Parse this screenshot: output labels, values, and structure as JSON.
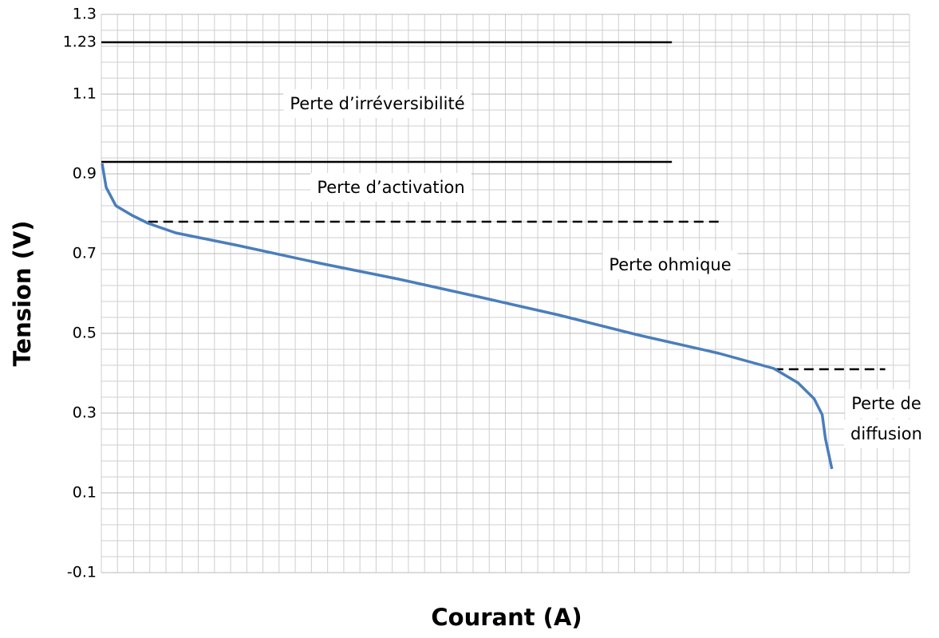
{
  "chart_data": {
    "type": "line",
    "xlabel": "Courant (A)",
    "ylabel": "Tension (V)",
    "xlim": [
      0,
      50
    ],
    "ylim": [
      -0.1,
      1.3
    ],
    "yticks": [
      -0.1,
      0.1,
      0.3,
      0.5,
      0.7,
      0.9,
      1.1,
      1.23,
      1.3
    ],
    "grid": true,
    "x_minor_step": 1,
    "y_minor_step": 0.04,
    "series": [
      {
        "color": "#4a7ebb",
        "x": [
          0.05,
          0.3,
          0.9,
          1.9,
          2.9,
          4.6,
          8.5,
          13.5,
          18.4,
          23.3,
          28.3,
          33.2,
          38.2,
          41.6,
          43.1,
          44.1,
          44.6,
          44.8,
          45.2
        ],
        "values": [
          0.926,
          0.866,
          0.82,
          0.796,
          0.776,
          0.752,
          0.72,
          0.676,
          0.636,
          0.592,
          0.546,
          0.496,
          0.45,
          0.412,
          0.376,
          0.336,
          0.296,
          0.236,
          0.16
        ]
      }
    ],
    "reference_lines": [
      {
        "y": 1.23,
        "x": [
          0,
          35.3
        ],
        "style": "solid"
      },
      {
        "y": 0.93,
        "x": [
          0,
          35.3
        ],
        "style": "solid"
      },
      {
        "y": 0.78,
        "x": [
          2.9,
          38.2
        ],
        "style": "dashed"
      },
      {
        "y": 0.41,
        "x": [
          41.6,
          48.5
        ],
        "style": "dashed"
      }
    ],
    "annotations": [
      {
        "lines": [
          "Perte d’irréversibilité"
        ]
      },
      {
        "lines": [
          "Perte d’activation"
        ]
      },
      {
        "lines": [
          "Perte ohmique"
        ]
      },
      {
        "lines": [
          "Perte de",
          "diffusion"
        ]
      }
    ]
  }
}
